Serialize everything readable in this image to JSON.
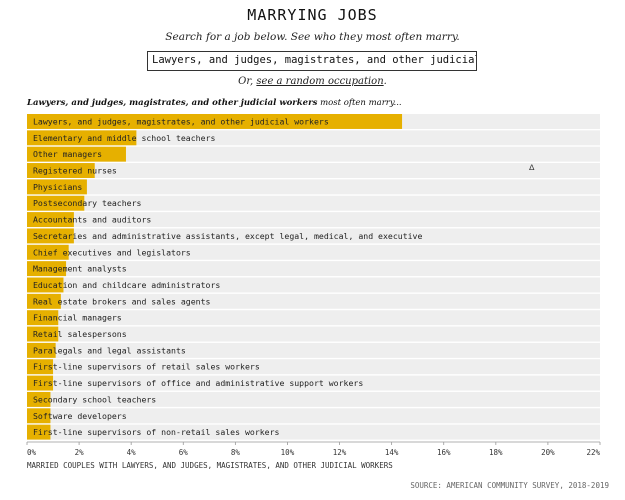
{
  "header": {
    "title": "MARRYING JOBS",
    "subtitle": "Search for a job below. See who they most often marry."
  },
  "search": {
    "value": "Lawyers, and judges, magistrates, and other judicial"
  },
  "random": {
    "prefix": "Or,",
    "link_text": "see a random occupation",
    "suffix": "."
  },
  "chart_heading": {
    "occupation": "Lawyers, and judges, magistrates, and other judicial workers",
    "suffix": "most often marry..."
  },
  "cursor_glyph": "ᐃ",
  "chart_data": {
    "type": "bar",
    "orientation": "horizontal",
    "title": "Lawyers, and judges, magistrates, and other judicial workers most often marry...",
    "xlabel": "MARRIED COUPLES WITH LAWYERS, AND JUDGES, MAGISTRATES, AND OTHER JUDICIAL WORKERS",
    "ylabel": "",
    "xlim": [
      0,
      22
    ],
    "x_ticks": [
      "0%",
      "2%",
      "4%",
      "6%",
      "8%",
      "10%",
      "12%",
      "14%",
      "16%",
      "18%",
      "20%",
      "22%"
    ],
    "bar_color": "#e6b000",
    "track_color": "#eeeeee",
    "categories": [
      "Lawyers, and judges, magistrates, and other judicial workers",
      "Elementary and middle school teachers",
      "Other managers",
      "Registered nurses",
      "Physicians",
      "Postsecondary teachers",
      "Accountants and auditors",
      "Secretaries and administrative assistants, except legal, medical, and executive",
      "Chief executives and legislators",
      "Management analysts",
      "Education and childcare administrators",
      "Real estate brokers and sales agents",
      "Financial managers",
      "Retail salespersons",
      "Paralegals and legal assistants",
      "First-line supervisors of retail sales workers",
      "First-line supervisors of office and administrative support workers",
      "Secondary school teachers",
      "Software developers",
      "First-line supervisors of non-retail sales workers"
    ],
    "values": [
      14.4,
      4.2,
      3.8,
      2.6,
      2.3,
      2.2,
      1.8,
      1.8,
      1.6,
      1.5,
      1.4,
      1.3,
      1.2,
      1.2,
      1.1,
      1.0,
      1.0,
      0.9,
      0.9,
      0.9
    ]
  },
  "source": "SOURCE: AMERICAN COMMUNITY SURVEY, 2018-2019"
}
